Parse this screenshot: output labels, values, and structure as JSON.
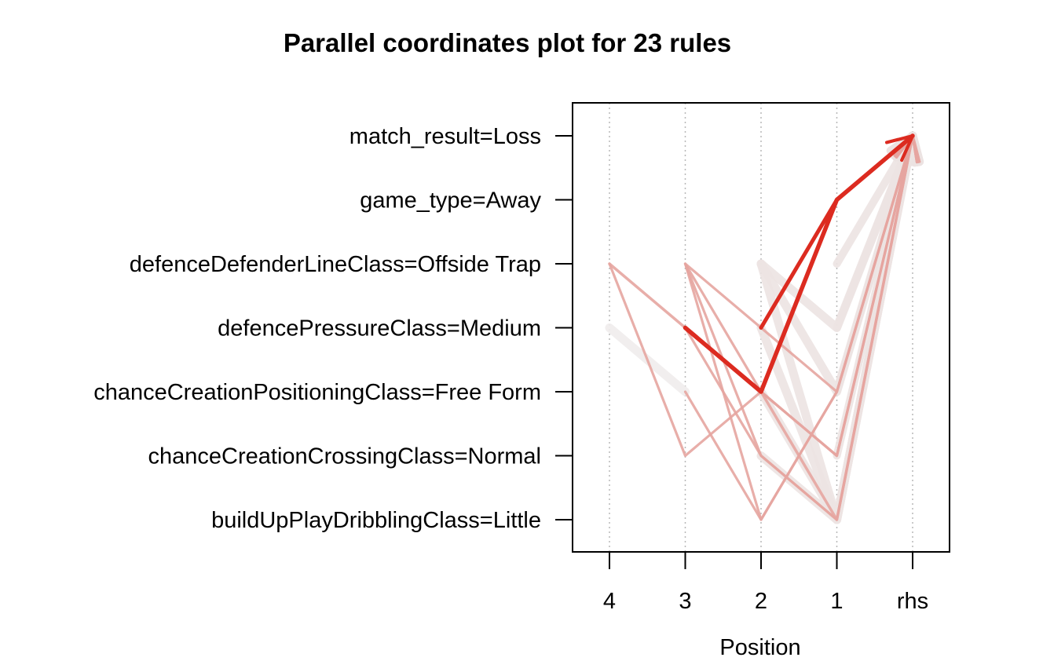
{
  "chart_data": {
    "type": "parallel-coordinates",
    "title": "Parallel coordinates plot for 23 rules",
    "xlabel": "Position",
    "ylabel": "",
    "x_ticks": [
      "4",
      "3",
      "2",
      "1",
      "rhs"
    ],
    "y_items": [
      "match_result=Loss",
      "game_type=Away",
      "defenceDefenderLineClass=Offside Trap",
      "defencePressureClass=Medium",
      "chanceCreationPositioningClass=Free Form",
      "chanceCreationCrossingClass=Normal",
      "buildUpPlayDribblingClass=Little"
    ],
    "grid": "dotted vertical at each position",
    "color_encoding": "darker red = higher lift, wider line = higher support",
    "colors": {
      "strong": "#dc2b20",
      "medium": "#e6a5a0",
      "light": "#ece3e2",
      "faint": "#f0ecec",
      "grid": "#b8b8b8"
    },
    "rules": [
      {
        "path": [
          null,
          "defencePressureClass=Medium",
          "chanceCreationPositioningClass=Free Form",
          "game_type=Away",
          "match_result=Loss"
        ],
        "lift_level": 1.0,
        "support_level": 0.35
      },
      {
        "path": [
          null,
          null,
          "defencePressureClass=Medium",
          "game_type=Away",
          "match_result=Loss"
        ],
        "lift_level": 0.95,
        "support_level": 0.3
      },
      {
        "path": [
          "defenceDefenderLineClass=Offside Trap",
          "defencePressureClass=Medium",
          "chanceCreationPositioningClass=Free Form",
          "buildUpPlayDribblingClass=Little",
          "match_result=Loss"
        ],
        "lift_level": 0.45,
        "support_level": 0.15
      },
      {
        "path": [
          "defenceDefenderLineClass=Offside Trap",
          "chanceCreationCrossingClass=Normal",
          "chanceCreationPositioningClass=Free Form",
          "chanceCreationCrossingClass=Normal",
          "match_result=Loss"
        ],
        "lift_level": 0.4,
        "support_level": 0.12
      },
      {
        "path": [
          "defencePressureClass=Medium",
          "chanceCreationPositioningClass=Free Form",
          null,
          null,
          null
        ],
        "lift_level": 0.05,
        "support_level": 0.9
      },
      {
        "path": [
          null,
          "defenceDefenderLineClass=Offside Trap",
          "chanceCreationCrossingClass=Normal",
          "buildUpPlayDribblingClass=Little",
          "match_result=Loss"
        ],
        "lift_level": 0.4,
        "support_level": 0.12
      },
      {
        "path": [
          null,
          "defenceDefenderLineClass=Offside Trap",
          "chanceCreationPositioningClass=Free Form",
          "chanceCreationCrossingClass=Normal",
          "match_result=Loss"
        ],
        "lift_level": 0.4,
        "support_level": 0.12
      },
      {
        "path": [
          null,
          "defenceDefenderLineClass=Offside Trap",
          "buildUpPlayDribblingClass=Little",
          "chanceCreationPositioningClass=Free Form",
          "match_result=Loss"
        ],
        "lift_level": 0.38,
        "support_level": 0.12
      },
      {
        "path": [
          null,
          "chanceCreationPositioningClass=Free Form",
          "buildUpPlayDribblingClass=Little",
          "chanceCreationPositioningClass=Free Form",
          "match_result=Loss"
        ],
        "lift_level": 0.35,
        "support_level": 0.12
      },
      {
        "path": [
          null,
          "defenceDefenderLineClass=Offside Trap",
          "defencePressureClass=Medium",
          "chanceCreationPositioningClass=Free Form",
          "match_result=Loss"
        ],
        "lift_level": 0.35,
        "support_level": 0.12
      },
      {
        "path": [
          null,
          "defencePressureClass=Medium",
          "chanceCreationCrossingClass=Normal",
          "buildUpPlayDribblingClass=Little",
          "match_result=Loss"
        ],
        "lift_level": 0.35,
        "support_level": 0.12
      },
      {
        "path": [
          null,
          null,
          "chanceCreationPositioningClass=Free Form",
          "chanceCreationCrossingClass=Normal",
          "match_result=Loss"
        ],
        "lift_level": 0.3,
        "support_level": 0.12
      },
      {
        "path": [
          null,
          null,
          "defenceDefenderLineClass=Offside Trap",
          "defencePressureClass=Medium",
          "match_result=Loss"
        ],
        "lift_level": 0.12,
        "support_level": 0.9
      },
      {
        "path": [
          null,
          null,
          "defenceDefenderLineClass=Offside Trap",
          "chanceCreationPositioningClass=Free Form",
          "match_result=Loss"
        ],
        "lift_level": 0.12,
        "support_level": 0.9
      },
      {
        "path": [
          null,
          null,
          "defenceDefenderLineClass=Offside Trap",
          "buildUpPlayDribblingClass=Little",
          "match_result=Loss"
        ],
        "lift_level": 0.12,
        "support_level": 0.9
      },
      {
        "path": [
          null,
          null,
          "defencePressureClass=Medium",
          "buildUpPlayDribblingClass=Little",
          "match_result=Loss"
        ],
        "lift_level": 0.12,
        "support_level": 0.9
      },
      {
        "path": [
          null,
          null,
          "chanceCreationPositioningClass=Free Form",
          "buildUpPlayDribblingClass=Little",
          "match_result=Loss"
        ],
        "lift_level": 0.12,
        "support_level": 0.9
      },
      {
        "path": [
          null,
          null,
          "chanceCreationCrossingClass=Normal",
          "buildUpPlayDribblingClass=Little",
          "match_result=Loss"
        ],
        "lift_level": 0.12,
        "support_level": 0.9
      },
      {
        "path": [
          null,
          null,
          null,
          "defenceDefenderLineClass=Offside Trap",
          "match_result=Loss"
        ],
        "lift_level": 0.1,
        "support_level": 0.8
      },
      {
        "path": [
          null,
          null,
          null,
          "defencePressureClass=Medium",
          "match_result=Loss"
        ],
        "lift_level": 0.1,
        "support_level": 0.8
      },
      {
        "path": [
          null,
          null,
          null,
          "chanceCreationPositioningClass=Free Form",
          "match_result=Loss"
        ],
        "lift_level": 0.1,
        "support_level": 0.8
      },
      {
        "path": [
          null,
          null,
          null,
          "buildUpPlayDribblingClass=Little",
          "match_result=Loss"
        ],
        "lift_level": 0.1,
        "support_level": 0.8
      },
      {
        "path": [
          null,
          null,
          null,
          "chanceCreationCrossingClass=Normal",
          "match_result=Loss"
        ],
        "lift_level": 0.1,
        "support_level": 0.8
      }
    ]
  }
}
